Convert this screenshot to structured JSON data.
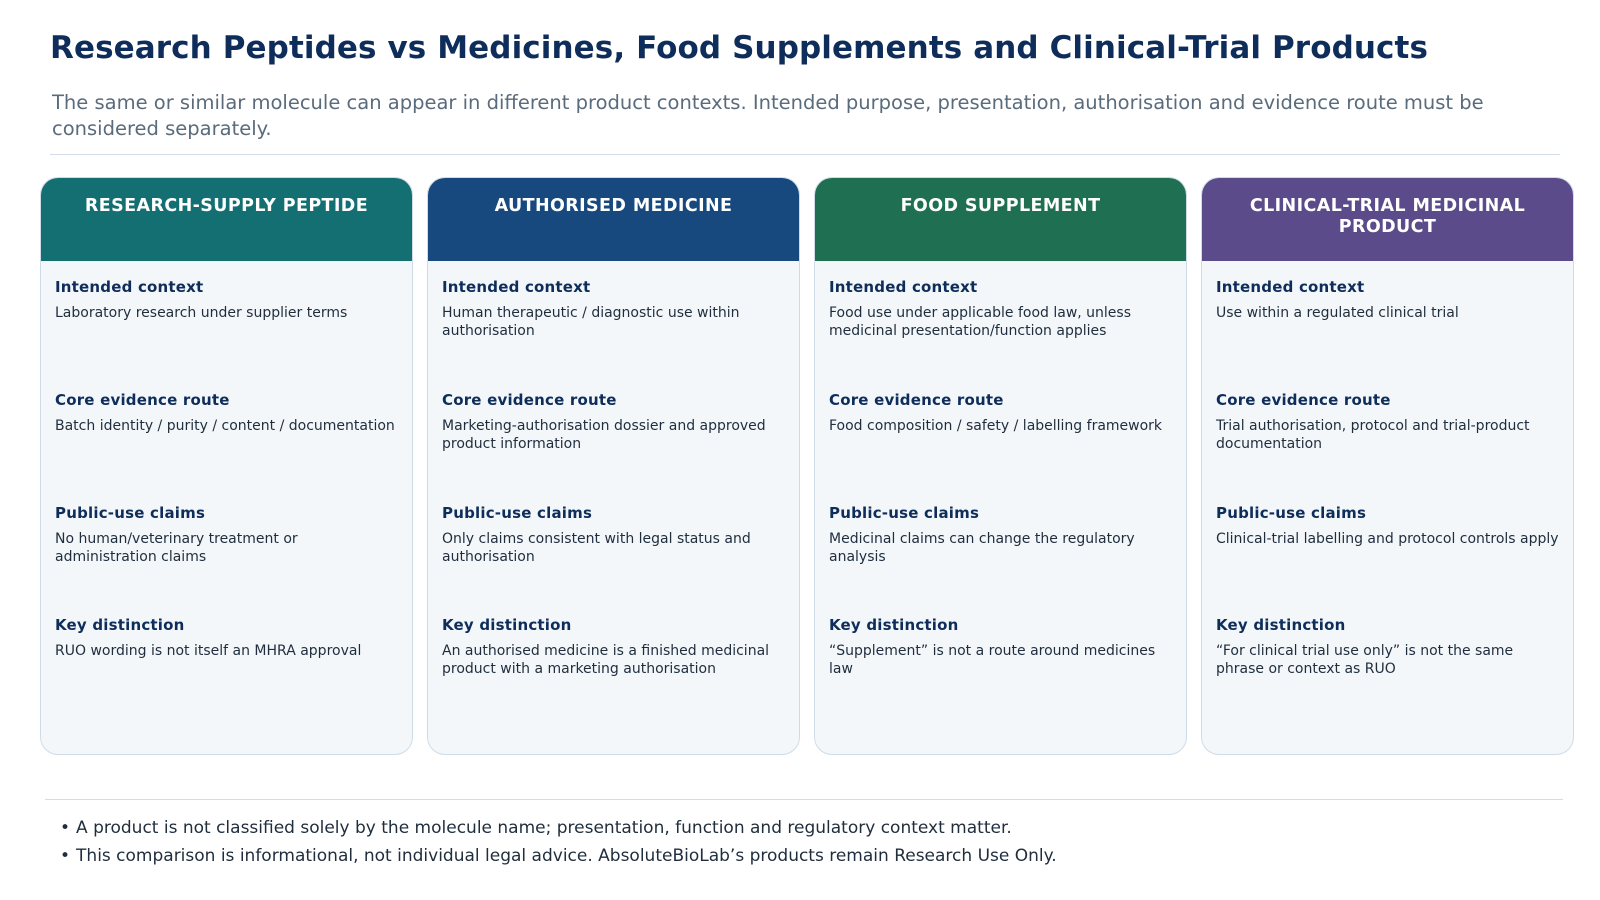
{
  "header": {
    "title": "Research Peptides vs Medicines, Food Supplements and Clinical-Trial Products",
    "subtitle": "The same or similar molecule can appear in different product contexts. Intended purpose, presentation, authorisation and evidence route must be considered separately."
  },
  "colors": {
    "research": "#146f73",
    "medicine": "#17497e",
    "food": "#1f7052",
    "trial": "#5b4b8a"
  },
  "cards": [
    {
      "title": "RESEARCH-SUPPLY PEPTIDE",
      "sections": [
        {
          "label": "Intended context",
          "text": "Laboratory research under supplier terms"
        },
        {
          "label": "Core evidence route",
          "text": "Batch identity / purity / content / documentation"
        },
        {
          "label": "Public-use claims",
          "text": "No human/veterinary treatment or administration claims"
        },
        {
          "label": "Key distinction",
          "text": "RUO wording is not itself an MHRA approval"
        }
      ]
    },
    {
      "title": "AUTHORISED MEDICINE",
      "sections": [
        {
          "label": "Intended context",
          "text": "Human therapeutic / diagnostic use within authorisation"
        },
        {
          "label": "Core evidence route",
          "text": "Marketing-authorisation dossier and approved product information"
        },
        {
          "label": "Public-use claims",
          "text": "Only claims consistent with legal status and authorisation"
        },
        {
          "label": "Key distinction",
          "text": "An authorised medicine is a finished medicinal product with a marketing authorisation"
        }
      ]
    },
    {
      "title": "FOOD SUPPLEMENT",
      "sections": [
        {
          "label": "Intended context",
          "text": "Food use under applicable food law, unless medicinal presentation/function applies"
        },
        {
          "label": "Core evidence route",
          "text": "Food composition / safety / labelling framework"
        },
        {
          "label": "Public-use claims",
          "text": "Medicinal claims can change the regulatory analysis"
        },
        {
          "label": "Key distinction",
          "text": "“Supplement” is not a route around medicines law"
        }
      ]
    },
    {
      "title": "CLINICAL-TRIAL MEDICINAL PRODUCT",
      "sections": [
        {
          "label": "Intended context",
          "text": "Use within a regulated clinical trial"
        },
        {
          "label": "Core evidence route",
          "text": "Trial authorisation, protocol and trial-product documentation"
        },
        {
          "label": "Public-use claims",
          "text": "Clinical-trial labelling and protocol controls apply"
        },
        {
          "label": "Key distinction",
          "text": "“For clinical trial use only” is not the same phrase or context as RUO"
        }
      ]
    }
  ],
  "notes": {
    "bullet": "•",
    "items": [
      "A product is not classified solely by the molecule name; presentation, function and regulatory context matter.",
      "This comparison is informational, not individual legal advice. AbsoluteBioLab’s products remain Research Use Only."
    ]
  }
}
